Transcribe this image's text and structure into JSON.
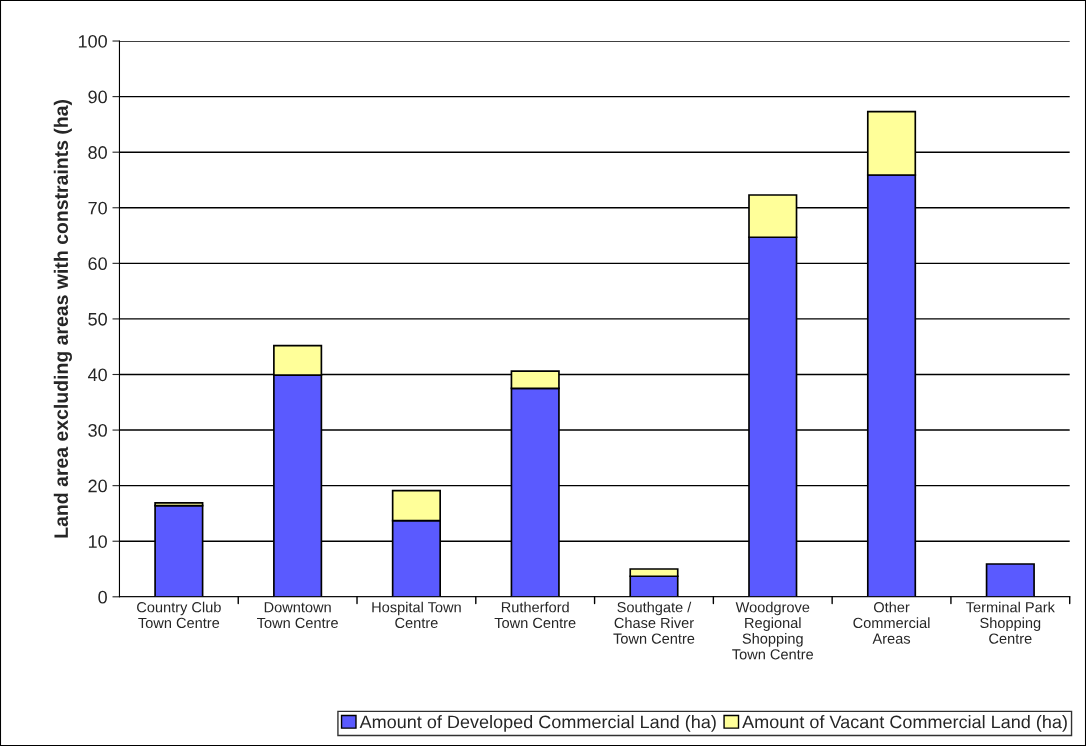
{
  "chart_data": {
    "type": "bar",
    "stacked": true,
    "ylabel": "Land area excluding areas with constraints (ha)",
    "categories": [
      "Country Club\nTown Centre",
      "Downtown\nTown Centre",
      "Hospital Town\nCentre",
      "Rutherford\nTown Centre",
      "Southgate /\nChase River\nTown Centre",
      "Woodgrove\nRegional\nShopping\nTown Centre",
      "Other\nCommercial\nAreas",
      "Terminal Park\nShopping\nCentre"
    ],
    "series": [
      {
        "name": "Amount of Developed Commercial Land (ha)",
        "color": "#5a5aff",
        "values": [
          16.4,
          39.9,
          13.7,
          37.5,
          3.7,
          64.7,
          75.9,
          5.9
        ]
      },
      {
        "name": "Amount of Vacant Commercial Land (ha)",
        "color": "#ffff99",
        "values": [
          0.5,
          5.3,
          5.4,
          3.1,
          1.3,
          7.6,
          11.4,
          null
        ]
      }
    ],
    "ylim": [
      0,
      100
    ],
    "yticks": [
      0,
      10,
      20,
      30,
      40,
      50,
      60,
      70,
      80,
      90,
      100
    ],
    "grid": "y",
    "legend": "bottom"
  }
}
